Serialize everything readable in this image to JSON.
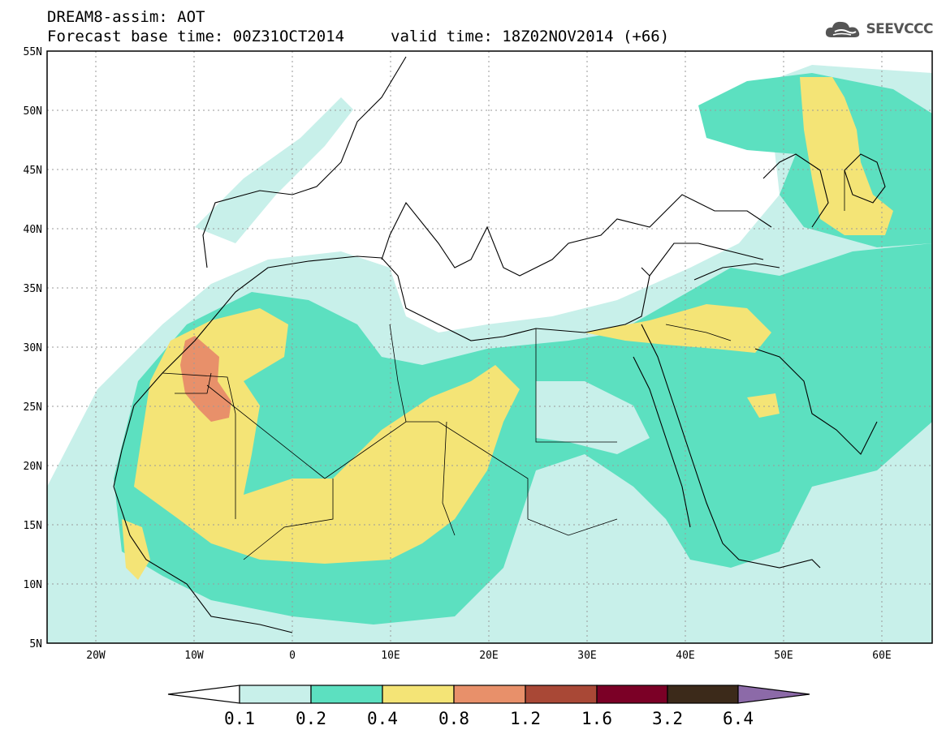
{
  "title_line1": "DREAM8-assim: AOT",
  "title_line2": "Forecast base time: 00Z31OCT2014",
  "valid_time": "valid time: 18Z02NOV2014 (+66)",
  "logo": {
    "text": "SEEVCCC",
    "icon": "cloud-icon"
  },
  "map": {
    "lon_range": [
      -25,
      65
    ],
    "lat_range": [
      5,
      55
    ],
    "lat_ticks": [
      "55N",
      "50N",
      "45N",
      "40N",
      "35N",
      "30N",
      "25N",
      "20N",
      "15N",
      "10N",
      "5N"
    ],
    "lon_ticks": [
      "20W",
      "10W",
      "0",
      "10E",
      "20E",
      "30E",
      "40E",
      "50E",
      "60E"
    ],
    "grid": "dotted"
  },
  "colorbar": {
    "colors": [
      "#c8f0ea",
      "#5ce0c0",
      "#f4e476",
      "#e8906a",
      "#a94836",
      "#7b0026",
      "#3c2a1a"
    ],
    "arrow_left_color": "#ffffff",
    "arrow_right_color": "#8c6aa8",
    "labels": [
      "0.1",
      "0.2",
      "0.4",
      "0.8",
      "1.2",
      "1.6",
      "3.2",
      "6.4"
    ]
  },
  "colors": {
    "aot_0_1": "#c8f0ea",
    "aot_0_2": "#5ce0c0",
    "aot_0_4": "#f4e476",
    "aot_0_8": "#e8906a"
  }
}
